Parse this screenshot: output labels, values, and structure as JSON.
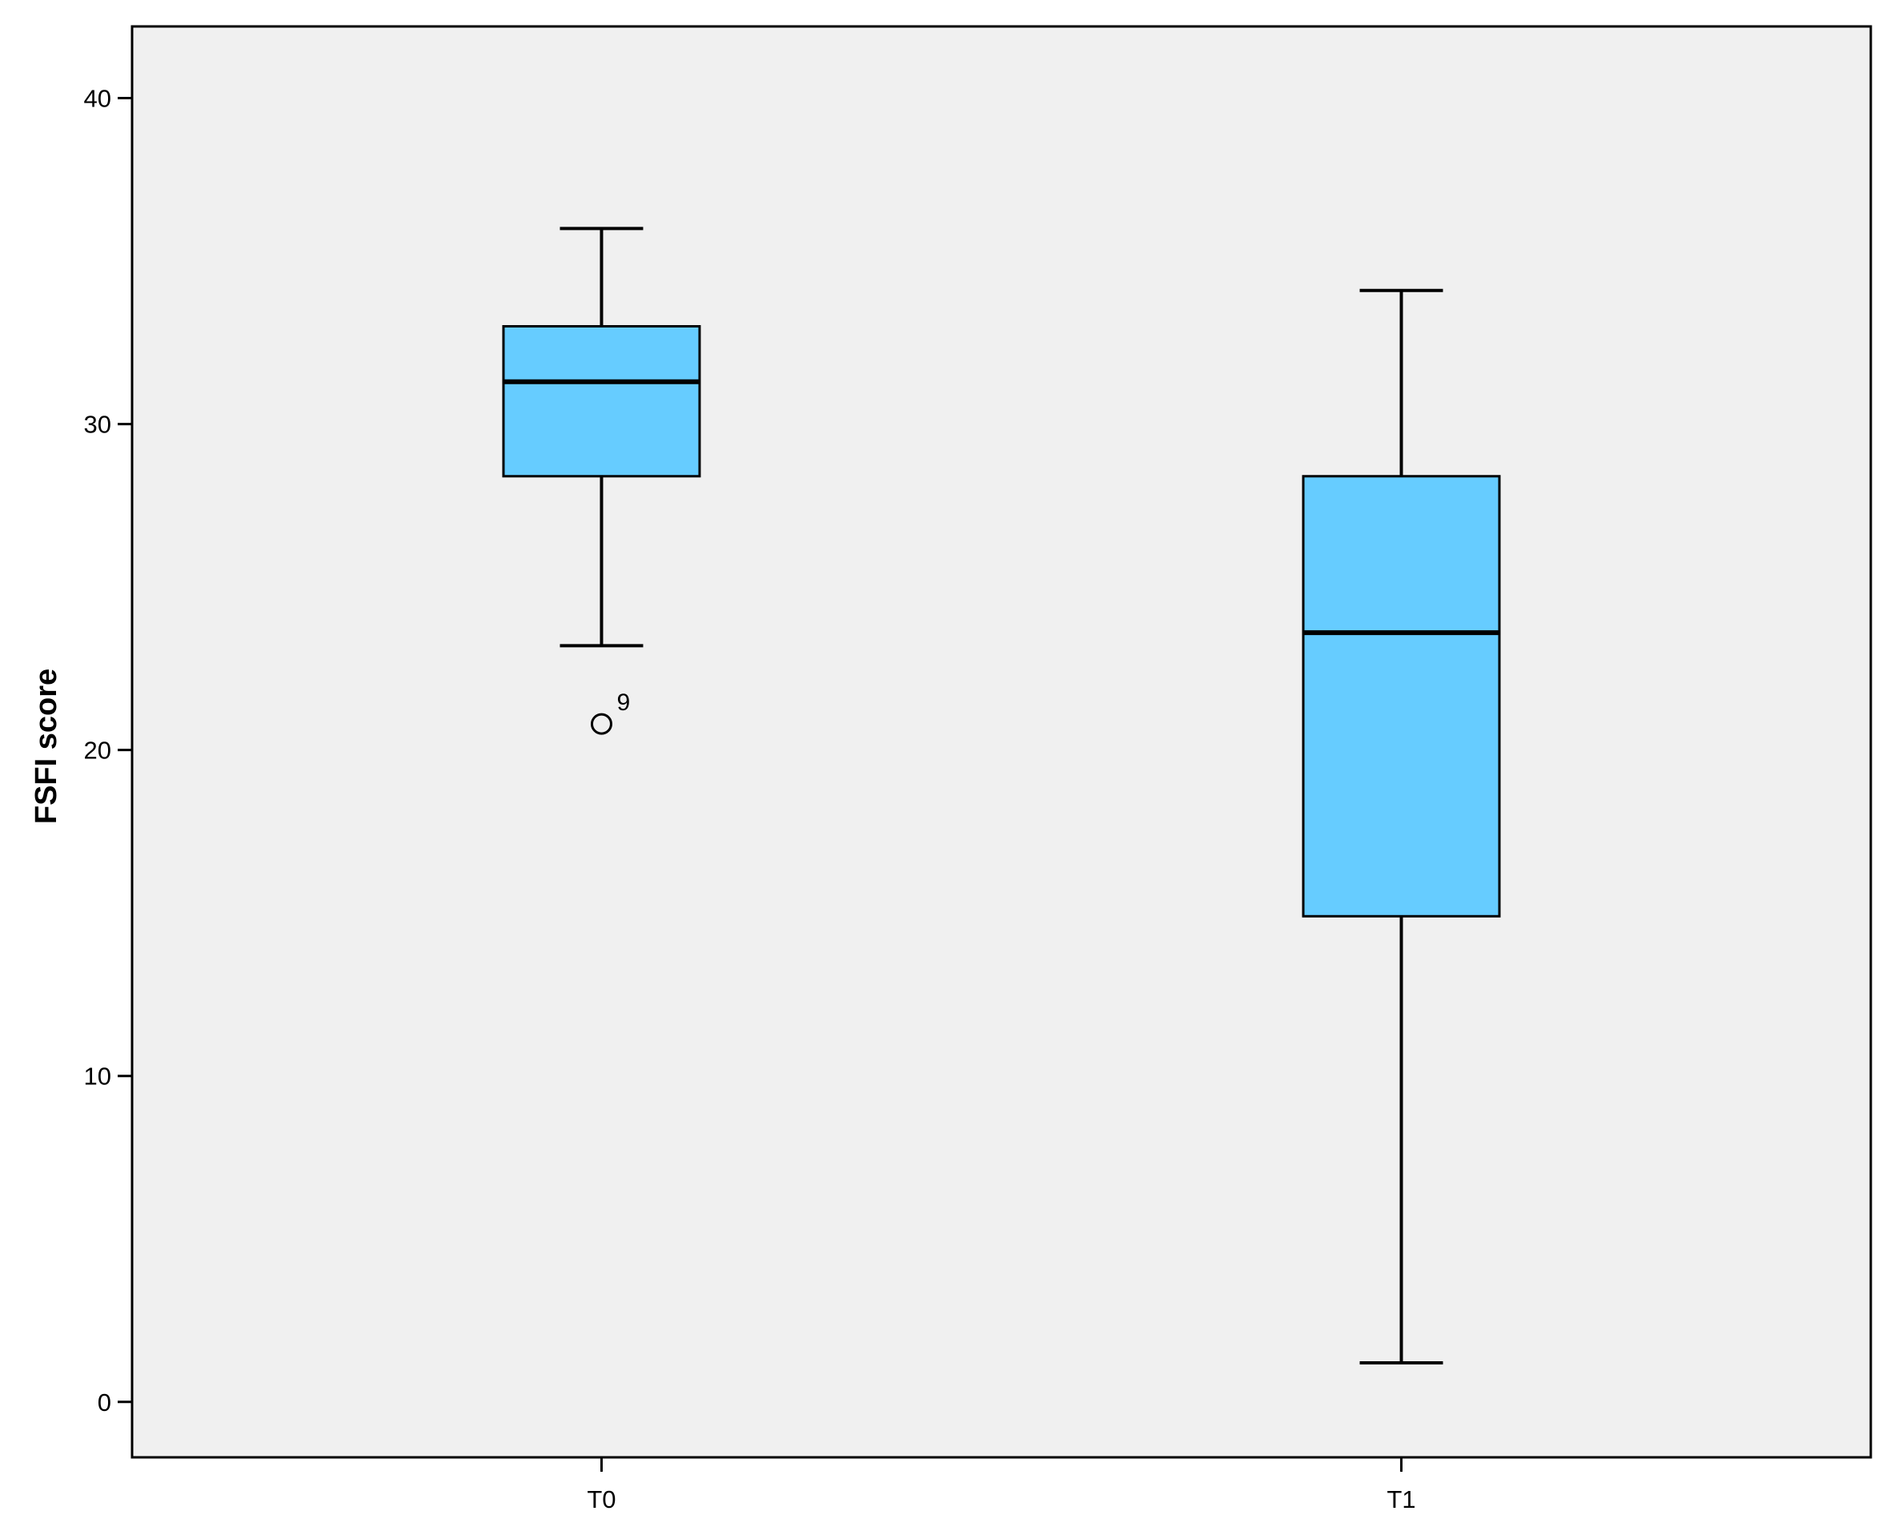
{
  "chart_data": {
    "type": "boxplot",
    "xlabel": "",
    "ylabel": "FSFI score",
    "ylim": [
      -1.7,
      42.2
    ],
    "yticks": [
      0,
      10,
      20,
      30,
      40
    ],
    "categories": [
      "T0",
      "T1"
    ],
    "boxes": [
      {
        "category": "T0",
        "whisker_low": 23.2,
        "q1": 28.4,
        "median": 31.3,
        "q3": 33.0,
        "whisker_high": 36.0,
        "outliers": [
          {
            "value": 20.8,
            "label": "9"
          }
        ]
      },
      {
        "category": "T1",
        "whisker_low": 1.2,
        "q1": 14.9,
        "median": 23.6,
        "q3": 28.4,
        "whisker_high": 34.1,
        "outliers": []
      }
    ],
    "colors": {
      "box_fill": "#66ccff",
      "plot_background": "#f0f0f0",
      "stroke": "#000000"
    },
    "grid": false,
    "legend": "none"
  }
}
